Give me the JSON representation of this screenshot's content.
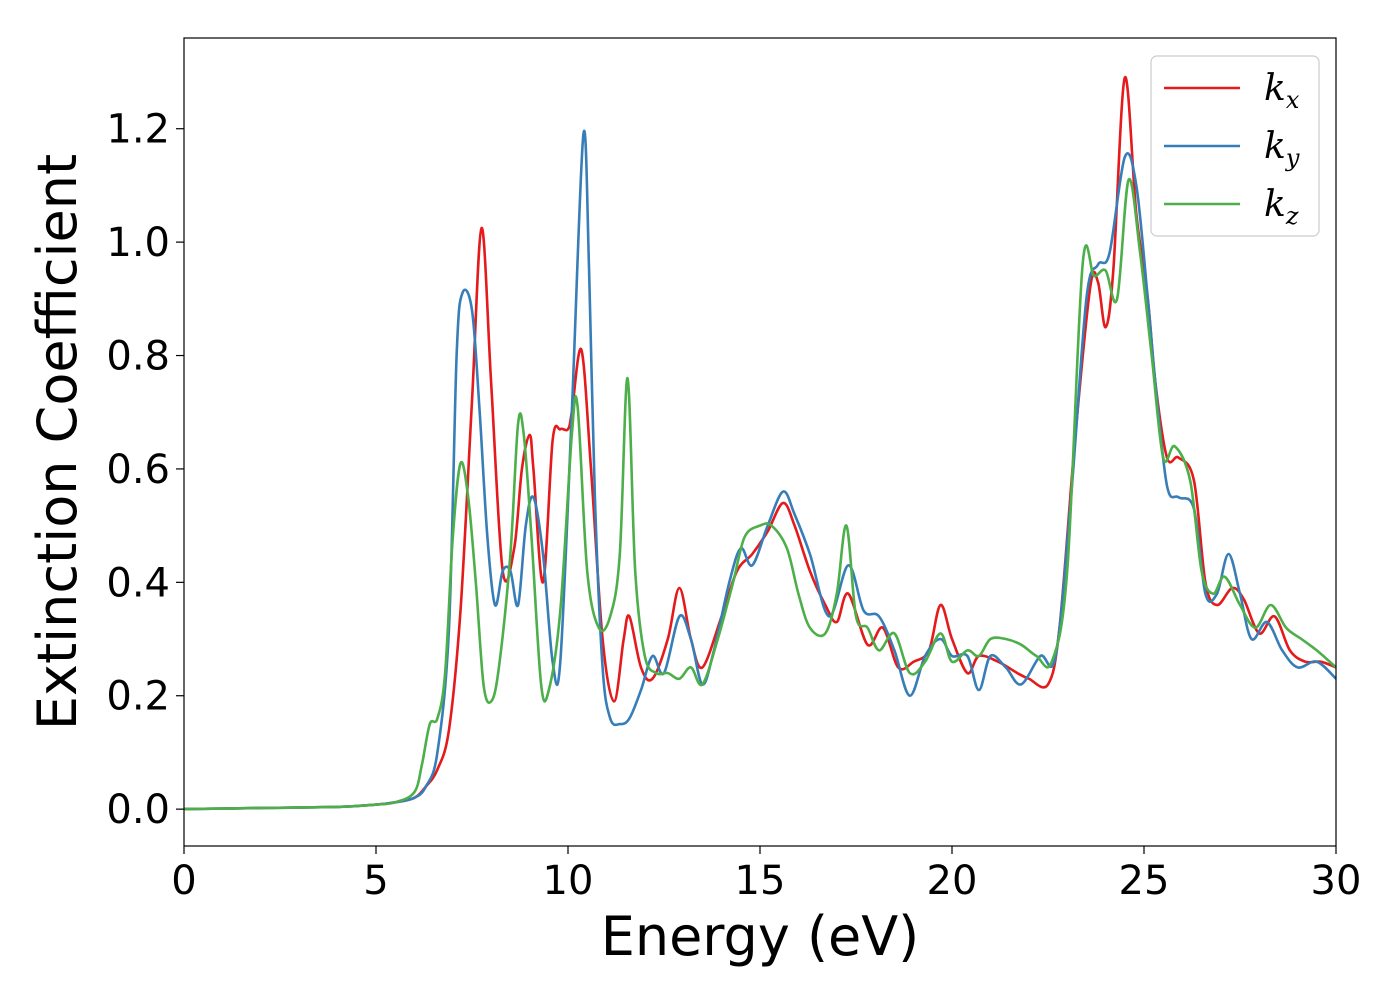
{
  "chart_data": {
    "type": "line",
    "xlabel": "Energy (eV)",
    "ylabel": "Extinction Coefficient",
    "xlim": [
      0,
      30
    ],
    "ylim": [
      -0.065,
      1.36
    ],
    "xticks": [
      0,
      5,
      10,
      15,
      20,
      25,
      30
    ],
    "xtick_labels": [
      "0",
      "5",
      "10",
      "15",
      "20",
      "25",
      "30"
    ],
    "yticks": [
      0.0,
      0.2,
      0.4,
      0.6,
      0.8,
      1.0,
      1.2
    ],
    "ytick_labels": [
      "0.0",
      "0.2",
      "0.4",
      "0.6",
      "0.8",
      "1.0",
      "1.2"
    ],
    "grid": false,
    "legend_position": "top-right",
    "series": [
      {
        "name": "k",
        "subscript": "x",
        "color": "#e41a1c",
        "x": [
          0,
          2,
          4,
          5,
          5.5,
          6,
          6.3,
          6.6,
          6.9,
          7.2,
          7.5,
          7.75,
          8.0,
          8.3,
          8.6,
          8.8,
          9.0,
          9.1,
          9.35,
          9.6,
          9.8,
          10.0,
          10.1,
          10.35,
          10.6,
          10.9,
          11.2,
          11.45,
          11.6,
          11.9,
          12.2,
          12.6,
          12.9,
          13.2,
          13.5,
          14.0,
          14.4,
          14.8,
          15.2,
          15.6,
          15.9,
          16.3,
          16.7,
          17.0,
          17.3,
          17.8,
          18.2,
          18.6,
          19.0,
          19.4,
          19.7,
          20.0,
          20.4,
          20.7,
          21.2,
          21.7,
          22.0,
          22.5,
          22.8,
          23.2,
          23.6,
          23.8,
          24.0,
          24.2,
          24.5,
          24.8,
          25.1,
          25.3,
          25.6,
          25.9,
          26.3,
          26.6,
          26.9,
          27.3,
          27.6,
          28.0,
          28.4,
          28.8,
          29.2,
          29.6,
          30
        ],
        "y": [
          0,
          0.002,
          0.004,
          0.008,
          0.012,
          0.02,
          0.04,
          0.07,
          0.14,
          0.35,
          0.72,
          1.025,
          0.75,
          0.42,
          0.46,
          0.6,
          0.66,
          0.6,
          0.4,
          0.65,
          0.67,
          0.67,
          0.7,
          0.81,
          0.6,
          0.3,
          0.19,
          0.3,
          0.34,
          0.25,
          0.23,
          0.3,
          0.39,
          0.3,
          0.25,
          0.34,
          0.42,
          0.45,
          0.49,
          0.54,
          0.5,
          0.42,
          0.36,
          0.33,
          0.38,
          0.29,
          0.32,
          0.25,
          0.26,
          0.28,
          0.36,
          0.3,
          0.24,
          0.27,
          0.26,
          0.24,
          0.23,
          0.22,
          0.32,
          0.65,
          0.92,
          0.93,
          0.85,
          0.95,
          1.29,
          1.05,
          0.9,
          0.75,
          0.62,
          0.62,
          0.58,
          0.4,
          0.36,
          0.39,
          0.37,
          0.31,
          0.34,
          0.28,
          0.26,
          0.26,
          0.25
        ]
      },
      {
        "name": "k",
        "subscript": "y",
        "color": "#377eb8",
        "x": [
          0,
          2,
          4,
          5,
          5.5,
          6,
          6.3,
          6.6,
          6.9,
          7.1,
          7.25,
          7.5,
          7.7,
          7.9,
          8.1,
          8.3,
          8.5,
          8.7,
          8.9,
          9.1,
          9.35,
          9.6,
          9.8,
          10.1,
          10.4,
          10.55,
          10.7,
          10.9,
          11.1,
          11.35,
          11.6,
          11.9,
          12.2,
          12.5,
          12.9,
          13.2,
          13.5,
          13.8,
          14.2,
          14.5,
          14.8,
          15.2,
          15.6,
          15.9,
          16.3,
          16.8,
          17.3,
          17.7,
          18.1,
          18.5,
          18.9,
          19.3,
          19.7,
          20.0,
          20.4,
          20.7,
          21.0,
          21.4,
          21.8,
          22.3,
          22.7,
          23.1,
          23.5,
          23.8,
          24.1,
          24.5,
          24.8,
          25.1,
          25.3,
          25.6,
          25.9,
          26.3,
          26.6,
          26.9,
          27.2,
          27.5,
          27.8,
          28.2,
          28.6,
          29.0,
          29.5,
          30
        ],
        "y": [
          0,
          0.002,
          0.004,
          0.008,
          0.012,
          0.02,
          0.04,
          0.1,
          0.32,
          0.8,
          0.91,
          0.88,
          0.7,
          0.48,
          0.36,
          0.42,
          0.42,
          0.36,
          0.5,
          0.55,
          0.45,
          0.26,
          0.26,
          0.7,
          1.19,
          0.95,
          0.55,
          0.25,
          0.16,
          0.15,
          0.16,
          0.21,
          0.27,
          0.24,
          0.34,
          0.3,
          0.22,
          0.28,
          0.4,
          0.46,
          0.43,
          0.5,
          0.56,
          0.52,
          0.45,
          0.34,
          0.43,
          0.35,
          0.34,
          0.28,
          0.2,
          0.27,
          0.3,
          0.27,
          0.27,
          0.21,
          0.27,
          0.25,
          0.22,
          0.27,
          0.27,
          0.55,
          0.9,
          0.96,
          0.98,
          1.15,
          1.1,
          0.9,
          0.75,
          0.57,
          0.55,
          0.53,
          0.38,
          0.38,
          0.45,
          0.38,
          0.3,
          0.33,
          0.28,
          0.25,
          0.26,
          0.23
        ]
      },
      {
        "name": "k",
        "subscript": "z",
        "color": "#4daf4a",
        "x": [
          0,
          2,
          4,
          5,
          5.5,
          6,
          6.2,
          6.4,
          6.6,
          6.8,
          7.0,
          7.2,
          7.4,
          7.6,
          7.8,
          8.0,
          8.2,
          8.5,
          8.7,
          8.85,
          9.05,
          9.3,
          9.5,
          9.8,
          10.1,
          10.25,
          10.5,
          10.8,
          11.1,
          11.35,
          11.55,
          11.75,
          12.0,
          12.3,
          12.6,
          12.9,
          13.2,
          13.5,
          13.9,
          14.3,
          14.6,
          15.0,
          15.3,
          15.7,
          16.0,
          16.3,
          16.7,
          17.0,
          17.25,
          17.5,
          17.8,
          18.1,
          18.5,
          18.9,
          19.3,
          19.7,
          20.0,
          20.4,
          20.7,
          21.0,
          21.4,
          21.8,
          22.2,
          22.6,
          23.0,
          23.4,
          23.7,
          24.0,
          24.3,
          24.6,
          24.9,
          25.2,
          25.5,
          25.8,
          26.2,
          26.5,
          26.8,
          27.1,
          27.5,
          27.9,
          28.3,
          28.7,
          29.1,
          29.5,
          30
        ],
        "y": [
          0,
          0.002,
          0.004,
          0.008,
          0.012,
          0.03,
          0.08,
          0.15,
          0.16,
          0.24,
          0.48,
          0.61,
          0.55,
          0.4,
          0.22,
          0.19,
          0.25,
          0.45,
          0.68,
          0.66,
          0.48,
          0.22,
          0.21,
          0.35,
          0.66,
          0.71,
          0.42,
          0.32,
          0.34,
          0.45,
          0.76,
          0.42,
          0.27,
          0.24,
          0.24,
          0.23,
          0.25,
          0.22,
          0.3,
          0.4,
          0.48,
          0.5,
          0.5,
          0.46,
          0.38,
          0.32,
          0.31,
          0.38,
          0.5,
          0.34,
          0.32,
          0.28,
          0.31,
          0.24,
          0.26,
          0.31,
          0.26,
          0.28,
          0.27,
          0.3,
          0.3,
          0.29,
          0.27,
          0.26,
          0.42,
          0.96,
          0.94,
          0.95,
          0.9,
          1.11,
          0.98,
          0.8,
          0.62,
          0.64,
          0.58,
          0.42,
          0.38,
          0.41,
          0.36,
          0.32,
          0.36,
          0.32,
          0.3,
          0.28,
          0.25
        ]
      }
    ]
  }
}
